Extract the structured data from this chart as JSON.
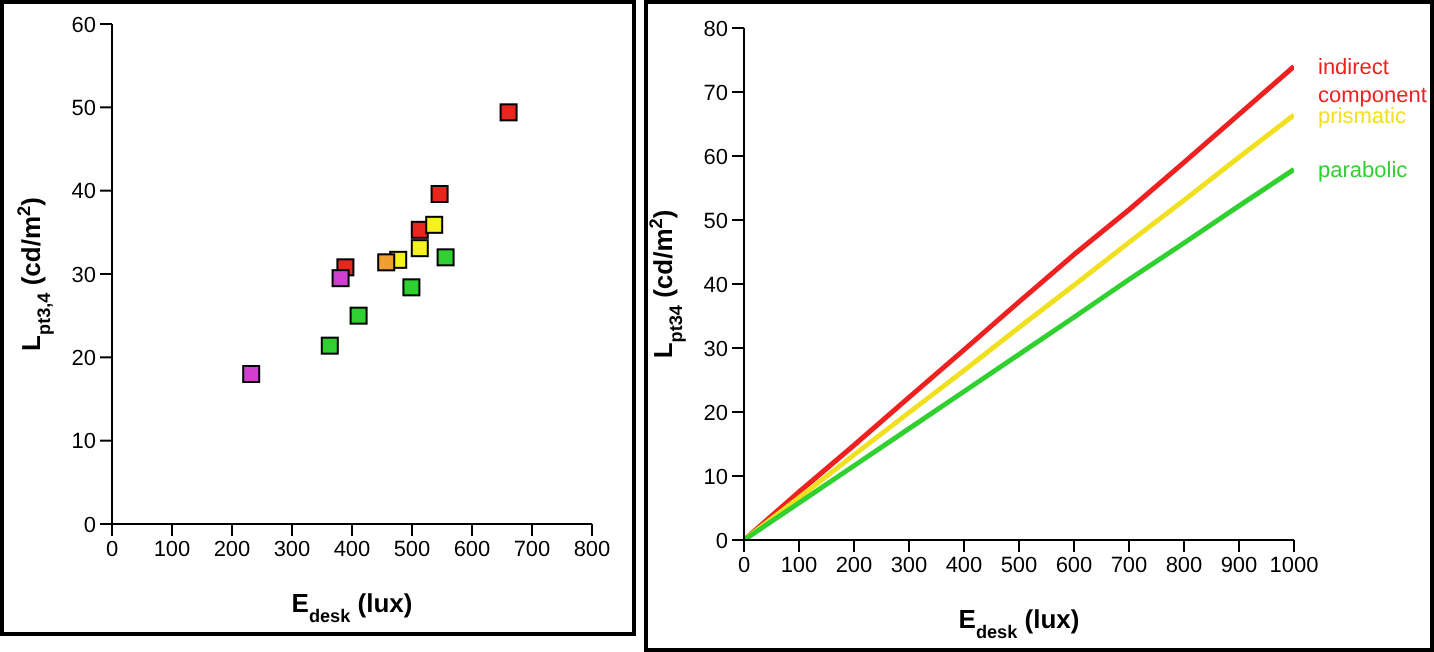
{
  "chart_data": [
    {
      "type": "scatter",
      "xlabel": "E$_{desk}$ (lux)",
      "ylabel": "L$_{pt3,4}$ (cd/m$^{2}$)",
      "xlim": [
        0,
        800
      ],
      "xticks": [
        0,
        100,
        200,
        300,
        400,
        500,
        600,
        700,
        800
      ],
      "ylim": [
        0,
        60
      ],
      "yticks": [
        0,
        10,
        20,
        30,
        40,
        50,
        60
      ],
      "grid": false,
      "legend": false,
      "marker": "square",
      "series": [
        {
          "color": "#e8261e",
          "x": [
            389,
            513,
            546,
            661
          ],
          "values": [
            30.8,
            35.3,
            39.6,
            49.4
          ]
        },
        {
          "color": "#f5f020",
          "x": [
            477,
            513,
            537
          ],
          "values": [
            31.7,
            33.1,
            35.9
          ]
        },
        {
          "color": "#f0a030",
          "x": [
            457
          ],
          "values": [
            31.4
          ]
        },
        {
          "color": "#30d030",
          "x": [
            363,
            411,
            499,
            556
          ],
          "values": [
            21.4,
            25.0,
            28.4,
            32.0
          ]
        },
        {
          "color": "#d040d0",
          "x": [
            232,
            381
          ],
          "values": [
            18.0,
            29.5
          ]
        }
      ]
    },
    {
      "type": "line",
      "xlabel": "E$_{desk}$ (lux)",
      "ylabel": "L$_{pt34}$ (cd/m$^{2}$)",
      "xlim": [
        0,
        1000
      ],
      "xticks": [
        0,
        100,
        200,
        300,
        400,
        500,
        600,
        700,
        800,
        900,
        1000
      ],
      "ylim": [
        0,
        80
      ],
      "yticks": [
        0,
        10,
        20,
        30,
        40,
        50,
        60,
        70,
        80
      ],
      "grid": false,
      "legend": false,
      "marker": "none",
      "line_style": "solid",
      "x": [
        0,
        100,
        200,
        300,
        400,
        500,
        600,
        700,
        800,
        900,
        1000
      ],
      "series": [
        {
          "name": "indirect component",
          "color": "#ee2020",
          "values": [
            0,
            7.5,
            14.8,
            22.3,
            29.7,
            37.2,
            44.6,
            51.6,
            59.0,
            66.5,
            74.0
          ]
        },
        {
          "name": "prismatic",
          "color": "#f0e020",
          "values": [
            0,
            6.6,
            13.3,
            19.9,
            26.5,
            33.2,
            39.8,
            46.5,
            53.1,
            59.8,
            66.4
          ]
        },
        {
          "name": "parabolic",
          "color": "#30d030",
          "values": [
            0,
            5.8,
            11.6,
            17.4,
            23.2,
            29.0,
            34.8,
            40.7,
            46.4,
            52.2,
            57.9
          ]
        }
      ]
    }
  ]
}
